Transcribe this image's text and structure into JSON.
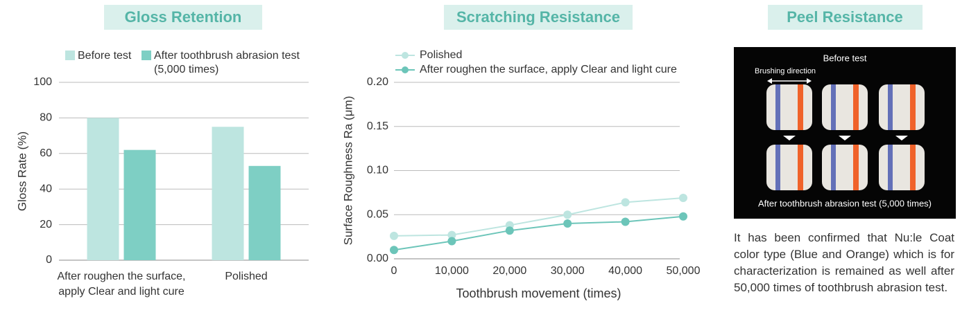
{
  "chart_data": [
    {
      "type": "bar",
      "title": "Gloss Retention",
      "categories": [
        "After roughen the surface,\napply Clear and light cure",
        "Polished"
      ],
      "series": [
        {
          "name": "Before test",
          "color": "#bde5e0",
          "values": [
            80,
            75
          ]
        },
        {
          "name": "After toothbrush abrasion test\n(5,000 times)",
          "color": "#7ecfc4",
          "values": [
            62,
            53
          ]
        }
      ],
      "y_label": "Gloss Rate (%)",
      "ylim": [
        0,
        100
      ],
      "yticks": [
        0,
        20,
        40,
        60,
        80,
        100
      ],
      "grid": true
    },
    {
      "type": "line",
      "title": "Scratching Resistance",
      "x": [
        0,
        10000,
        20000,
        30000,
        40000,
        50000
      ],
      "series": [
        {
          "name": "Polished",
          "color": "#bde5e0",
          "values": [
            0.026,
            0.027,
            0.038,
            0.05,
            0.064,
            0.069
          ]
        },
        {
          "name": "After roughen the surface, apply Clear and light cure",
          "color": "#6cc5b9",
          "values": [
            0.01,
            0.02,
            0.032,
            0.04,
            0.042,
            0.048
          ]
        }
      ],
      "x_label": "Toothbrush movement (times)",
      "y_label": "Surface Roughness Ra (μm)",
      "xlim": [
        0,
        50000
      ],
      "xticks": [
        0,
        {
          "value": 10000,
          "label": "10,000"
        },
        {
          "value": 20000,
          "label": "20,000"
        },
        {
          "value": 30000,
          "label": "30,000"
        },
        {
          "value": 40000,
          "label": "40,000"
        },
        {
          "value": 50000,
          "label": "50,000"
        }
      ],
      "ylim": [
        0,
        0.2
      ],
      "yticks": [
        {
          "value": 0,
          "label": "0.00"
        },
        0.05,
        {
          "value": 0.1,
          "label": "0.10"
        },
        0.15,
        {
          "value": 0.2,
          "label": "0.20"
        }
      ],
      "grid": true
    }
  ],
  "peel": {
    "title": "Peel Resistance",
    "photo": {
      "top_label": "Before test",
      "direction_label": "Brushing direction",
      "bottom_label": "After toothbrush abrasion test (5,000 times)"
    },
    "description": "It has been confirmed that Nu:le Coat color type (Blue and Orange) which is for characterization is remained as well after 50,000 times of toothbrush abrasion test."
  }
}
